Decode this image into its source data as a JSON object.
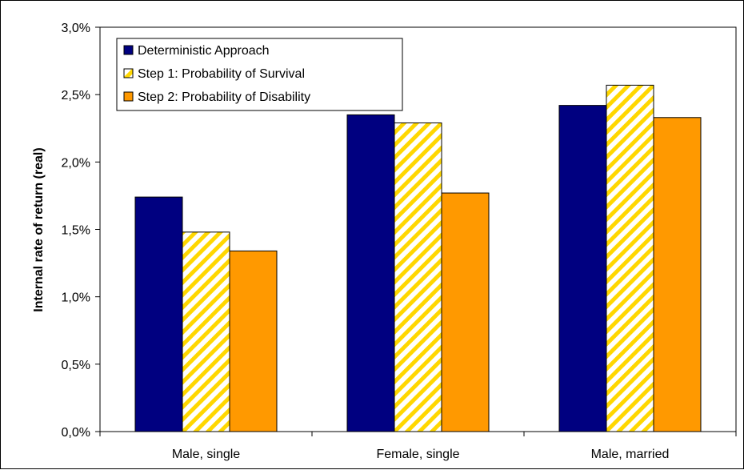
{
  "chart_data": {
    "type": "bar",
    "title": "",
    "xlabel": "",
    "ylabel": "Internal rate of return (real)",
    "ylim": [
      0,
      3.0
    ],
    "yticks": [
      "0,0%",
      "0,5%",
      "1,0%",
      "1,5%",
      "2,0%",
      "2,5%",
      "3,0%"
    ],
    "categories": [
      "Male, single",
      "Female, single",
      "Male, married"
    ],
    "series": [
      {
        "name": "Deterministic Approach",
        "values": [
          1.74,
          2.35,
          2.42
        ],
        "color": "#000080",
        "pattern": "solid"
      },
      {
        "name": "Step 1: Probability of Survival",
        "values": [
          1.48,
          2.29,
          2.57
        ],
        "color": "#FFD700",
        "pattern": "diagonal-stripes"
      },
      {
        "name": "Step 2: Probability of Disability",
        "values": [
          1.34,
          1.77,
          2.33
        ],
        "color": "#FF9900",
        "pattern": "solid"
      }
    ],
    "grid": false,
    "legend_position": "top-left"
  }
}
